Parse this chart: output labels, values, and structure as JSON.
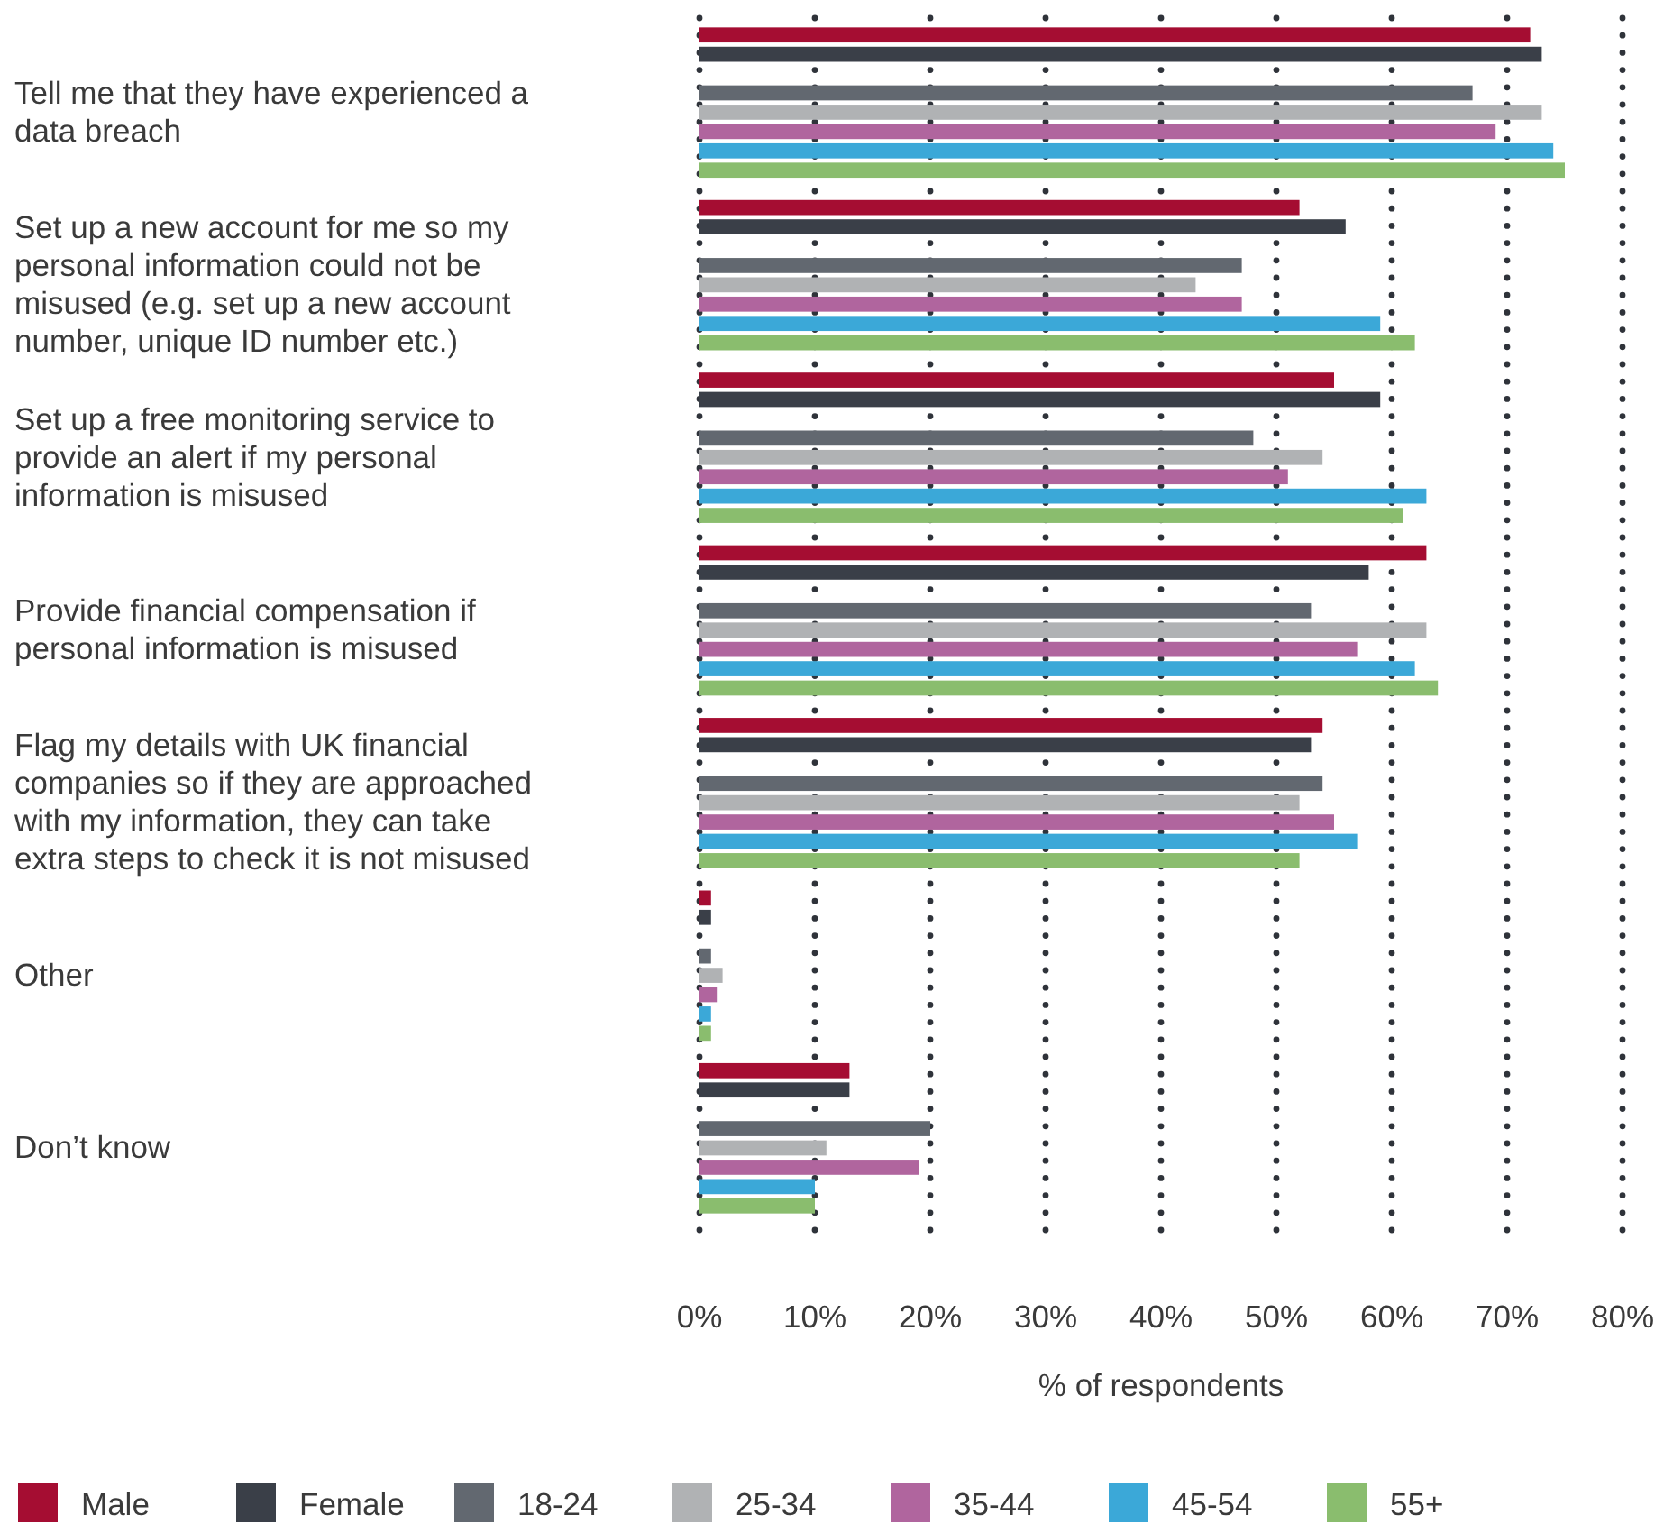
{
  "chart_data": {
    "type": "bar",
    "orientation": "horizontal",
    "xlabel": "% of respondents",
    "categories": [
      "Tell me that they have experienced a data breach",
      "Set up a new account for me so my personal information could not be misused (e.g. set up a new account number, unique ID number etc.)",
      "Set up a free monitoring service to provide an alert if my personal information is misused",
      "Provide financial compensation if personal information is misused",
      "Flag my details with UK financial companies so if they are approached with my information, they can take extra steps to check it is not misused",
      "Other",
      "Don’t know"
    ],
    "series": [
      {
        "name": "Male",
        "color": "#a50d32",
        "values": [
          72,
          52,
          55,
          63,
          54,
          1,
          13
        ]
      },
      {
        "name": "Female",
        "color": "#3a3f48",
        "values": [
          73,
          56,
          59,
          58,
          53,
          1,
          13
        ]
      },
      {
        "name": "18-24",
        "color": "#626870",
        "values": [
          67,
          47,
          48,
          53,
          54,
          1,
          20
        ]
      },
      {
        "name": "25-34",
        "color": "#b0b2b4",
        "values": [
          73,
          43,
          54,
          63,
          52,
          2,
          11
        ]
      },
      {
        "name": "35-44",
        "color": "#b0659e",
        "values": [
          69,
          47,
          51,
          57,
          55,
          1.5,
          19
        ]
      },
      {
        "name": "45-54",
        "color": "#3ba8d8",
        "values": [
          74,
          59,
          63,
          62,
          57,
          1,
          10
        ]
      },
      {
        "name": "55+",
        "color": "#8abd6e",
        "values": [
          75,
          62,
          61,
          64,
          52,
          1,
          10
        ]
      }
    ],
    "xlim": [
      0,
      80
    ],
    "xticks": [
      {
        "value": 0,
        "label": "0%"
      },
      {
        "value": 10,
        "label": "10%"
      },
      {
        "value": 20,
        "label": "20%"
      },
      {
        "value": 30,
        "label": "30%"
      },
      {
        "value": 40,
        "label": "40%"
      },
      {
        "value": 50,
        "label": "50%"
      },
      {
        "value": 60,
        "label": "60%"
      },
      {
        "value": 70,
        "label": "70%"
      },
      {
        "value": 80,
        "label": "80%"
      }
    ],
    "grid": "x",
    "legend": "bottom"
  }
}
